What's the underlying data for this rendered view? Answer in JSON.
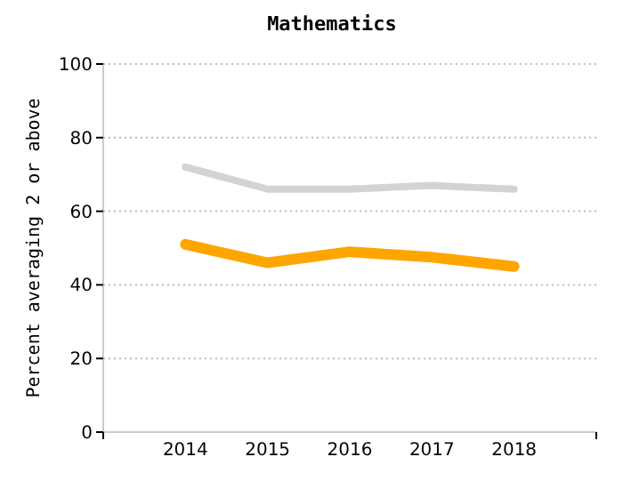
{
  "chart_data": {
    "type": "line",
    "title": "Mathematics",
    "ylabel": "Percent averaging 2 or above",
    "x": [
      2014,
      2015,
      2016,
      2017,
      2018
    ],
    "xlim": [
      2013,
      2019
    ],
    "xticks": [
      2014,
      2015,
      2016,
      2017,
      2018
    ],
    "ylim": [
      0,
      100
    ],
    "yticks": [
      0,
      20,
      40,
      60,
      80,
      100
    ],
    "grid": "y",
    "series": [
      {
        "color": "#d3d3d3",
        "values": [
          72,
          66,
          66,
          67,
          66
        ]
      },
      {
        "color": "#ffa500",
        "values": [
          51,
          46,
          49,
          47.5,
          45
        ]
      }
    ]
  }
}
